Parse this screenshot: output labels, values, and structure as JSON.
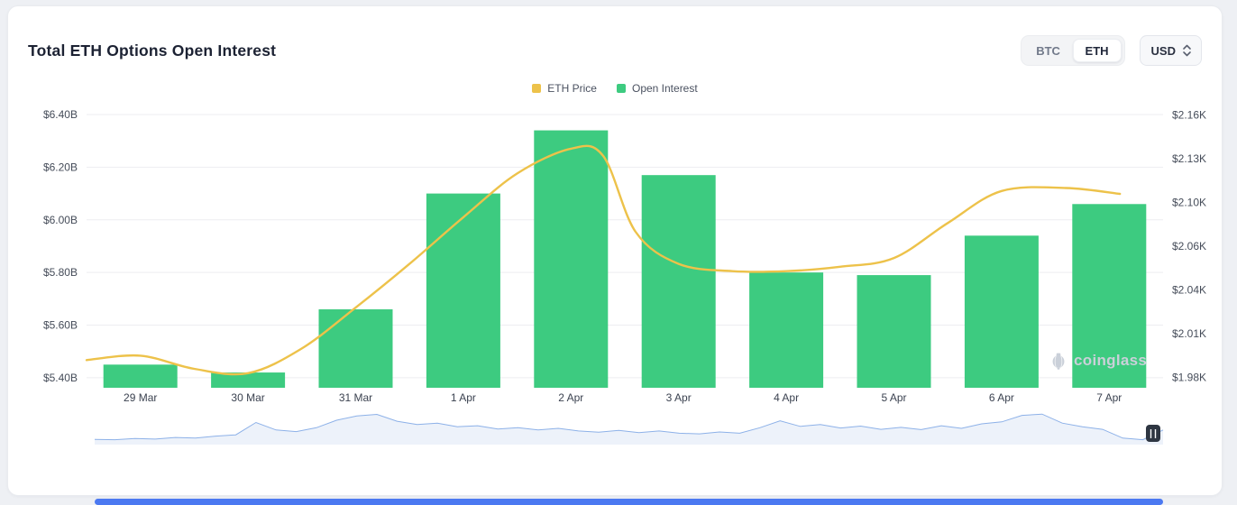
{
  "page": {
    "background": "#eef0f4",
    "scrollbar_color": "#4b79f1"
  },
  "header": {
    "title": "Total ETH Options Open Interest",
    "coin_toggle": {
      "options": [
        "BTC",
        "ETH"
      ],
      "selected": "ETH"
    },
    "currency_select": {
      "value": "USD"
    }
  },
  "legend": [
    {
      "label": "ETH Price",
      "color": "#EDC24A"
    },
    {
      "label": "Open Interest",
      "color": "#3DCB80"
    }
  ],
  "watermark": {
    "text": "coinglass"
  },
  "chart_data": {
    "type": "mixed",
    "title": "Total ETH Options Open Interest",
    "grid": true,
    "legend_position": "top-center",
    "categories": [
      "29 Mar",
      "30 Mar",
      "31 Mar",
      "1 Apr",
      "2 Apr",
      "3 Apr",
      "4 Apr",
      "5 Apr",
      "6 Apr",
      "7 Apr"
    ],
    "series": [
      {
        "name": "ETH Price",
        "type": "line",
        "axis": "right",
        "color": "#EDC24A",
        "unit": "K USD",
        "x": [
          -0.5,
          0,
          0.5,
          1,
          1.5,
          2,
          2.5,
          3,
          3.5,
          4,
          4.3,
          4.6,
          5,
          5.5,
          6,
          6.5,
          7,
          7.5,
          8,
          8.6,
          9.1
        ],
        "values": [
          1.992,
          1.995,
          1.986,
          1.983,
          2.0,
          2.028,
          2.058,
          2.09,
          2.12,
          2.137,
          2.132,
          2.08,
          2.058,
          2.053,
          2.053,
          2.056,
          2.062,
          2.086,
          2.108,
          2.11,
          2.106
        ]
      },
      {
        "name": "Open Interest",
        "type": "bar",
        "axis": "left",
        "color": "#3DCB80",
        "unit": "B USD",
        "values": [
          5.45,
          5.42,
          5.66,
          6.1,
          6.34,
          6.17,
          5.8,
          5.79,
          5.94,
          6.06
        ]
      }
    ],
    "left_axis": {
      "tick_labels": [
        "$6.40B",
        "$6.20B",
        "$6.00B",
        "$5.80B",
        "$5.60B",
        "$5.40B"
      ],
      "tick_values": [
        6.4,
        6.2,
        6.0,
        5.8,
        5.6,
        5.4
      ],
      "range": [
        5.362,
        6.431
      ]
    },
    "right_axis": {
      "tick_labels": [
        "$2.16K",
        "$2.13K",
        "$2.10K",
        "$2.06K",
        "$2.04K",
        "$2.01K",
        "$1.98K"
      ],
      "range": [
        1.973,
        2.166
      ]
    },
    "navigator": {
      "line_color": "#8db1e8",
      "fill_color": "#e3ebf8",
      "handle_color": "#2e3642",
      "values": [
        0.16,
        0.15,
        0.19,
        0.17,
        0.22,
        0.2,
        0.26,
        0.3,
        0.68,
        0.45,
        0.4,
        0.52,
        0.75,
        0.88,
        0.93,
        0.72,
        0.62,
        0.66,
        0.55,
        0.58,
        0.48,
        0.52,
        0.45,
        0.5,
        0.42,
        0.38,
        0.44,
        0.37,
        0.42,
        0.35,
        0.33,
        0.39,
        0.35,
        0.52,
        0.73,
        0.56,
        0.62,
        0.51,
        0.57,
        0.47,
        0.53,
        0.46,
        0.58,
        0.5,
        0.64,
        0.7,
        0.9,
        0.94,
        0.66,
        0.55,
        0.47,
        0.2,
        0.15,
        0.45
      ]
    }
  }
}
